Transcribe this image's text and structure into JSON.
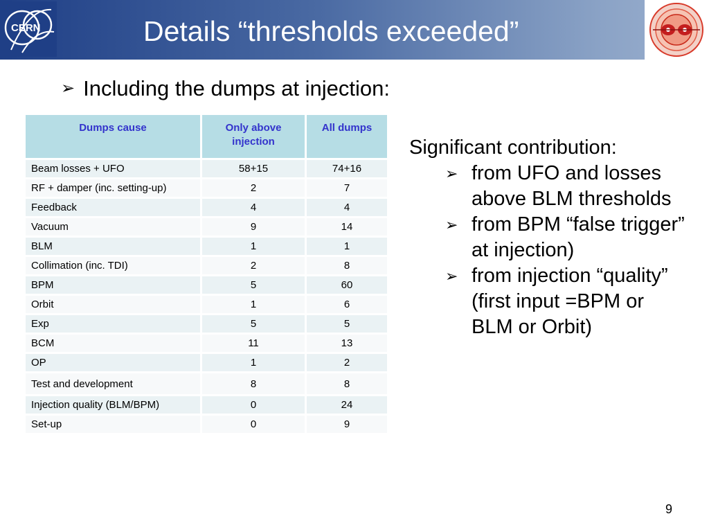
{
  "header": {
    "title": "Details “thresholds exceeded”",
    "cern_logo_text": "CERN",
    "brand_color": "#1f3f86"
  },
  "bullet": {
    "icon": "arrow-bullet-icon",
    "text": "Including the dumps at injection:"
  },
  "table": {
    "headers": [
      "Dumps cause",
      "Only above injection",
      "All dumps"
    ],
    "rows": [
      {
        "cause": "Beam losses + UFO",
        "only": "58+15",
        "all": "74+16"
      },
      {
        "cause": "RF + damper (inc. setting-up)",
        "only": "2",
        "all": "7"
      },
      {
        "cause": "Feedback",
        "only": "4",
        "all": "4"
      },
      {
        "cause": "Vacuum",
        "only": "9",
        "all": "14"
      },
      {
        "cause": "BLM",
        "only": "1",
        "all": "1"
      },
      {
        "cause": "Collimation (inc. TDI)",
        "only": "2",
        "all": "8"
      },
      {
        "cause": "BPM",
        "only": "5",
        "all": "60"
      },
      {
        "cause": "Orbit",
        "only": "1",
        "all": "6"
      },
      {
        "cause": "Exp",
        "only": "5",
        "all": "5"
      },
      {
        "cause": "BCM",
        "only": "11",
        "all": "13"
      },
      {
        "cause": "OP",
        "only": "1",
        "all": "2"
      },
      {
        "cause": "Test and development",
        "only": "8",
        "all": "8"
      },
      {
        "cause": "Injection quality (BLM/BPM)",
        "only": "0",
        "all": "24"
      },
      {
        "cause": "Set-up",
        "only": "0",
        "all": "9"
      }
    ],
    "header_bg": "#b6dde5",
    "header_text_color": "#3333cc"
  },
  "side": {
    "title": "Significant contribution:",
    "items": [
      {
        "line1": "from UFO and losses",
        "line2": "above BLM thresholds"
      },
      {
        "line1": "from BPM “false trigger”",
        "line2": "at injection)"
      },
      {
        "line1": "from injection “quality”",
        "line2": "(first input =BPM or",
        "line3": "BLM or Orbit)"
      }
    ]
  },
  "page_number": "9"
}
